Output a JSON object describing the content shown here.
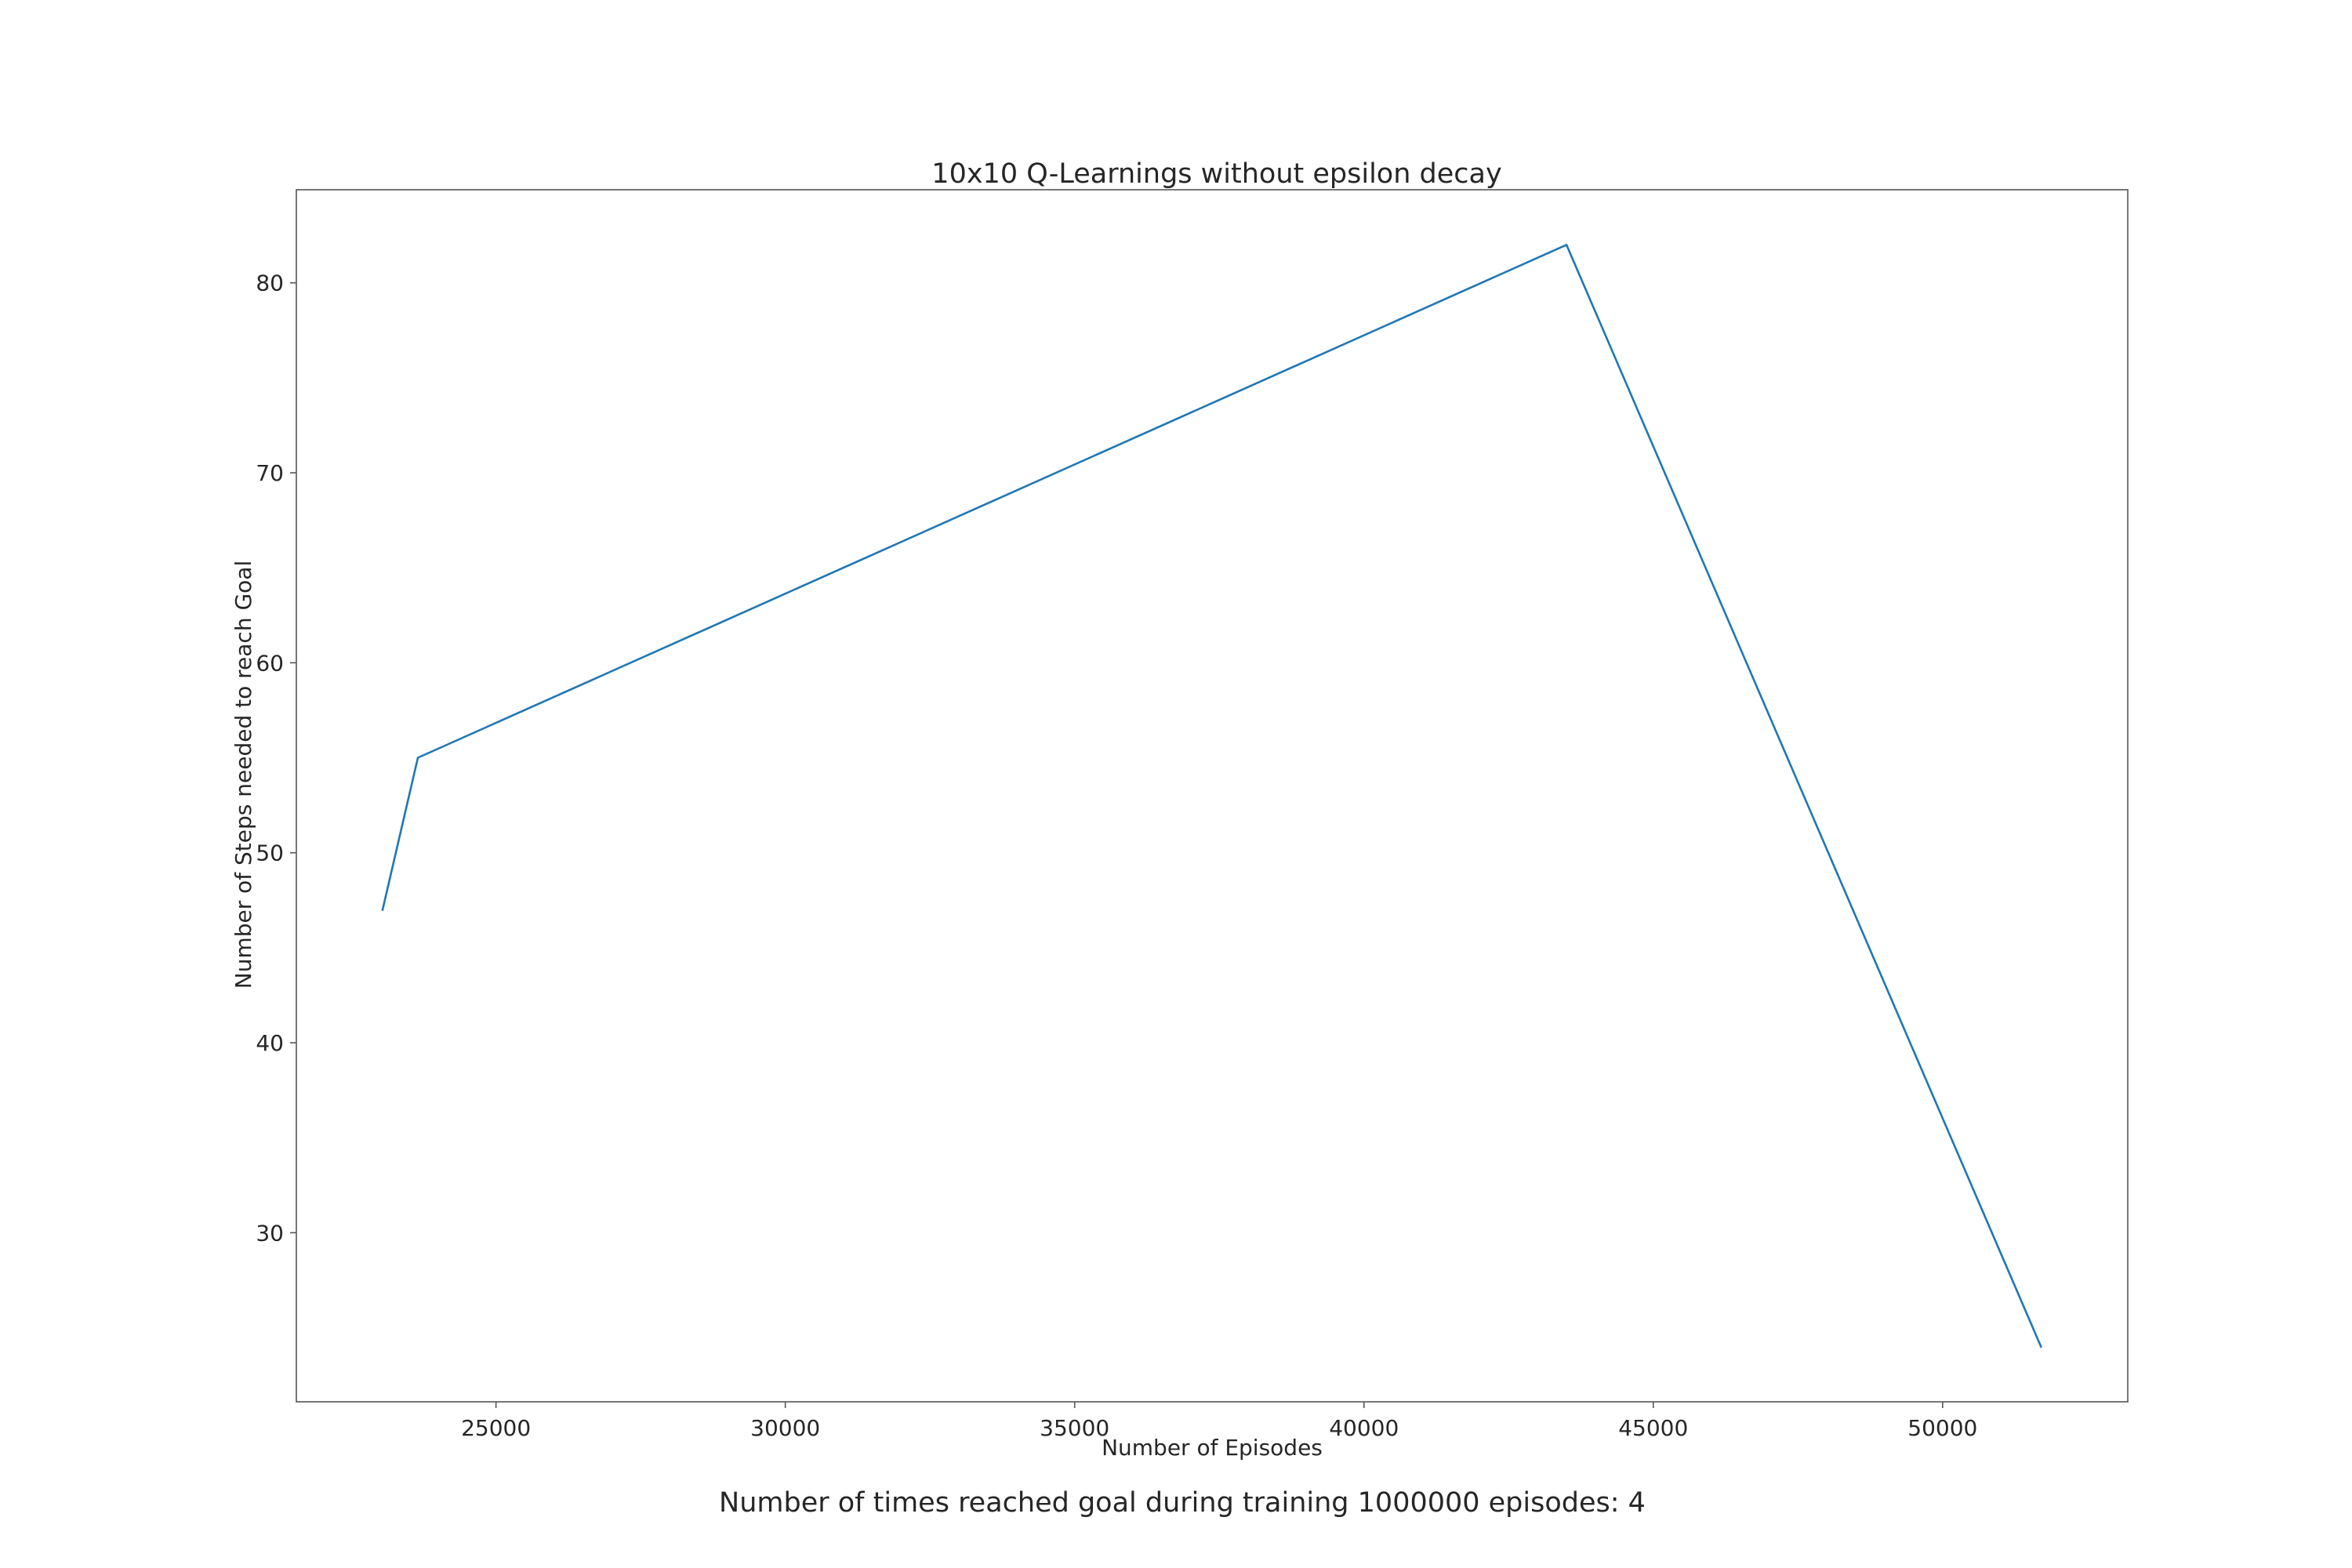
{
  "chart_data": {
    "type": "line",
    "title": "10x10 Q-Learnings without epsilon decay",
    "xlabel": "Number of Episodes",
    "ylabel": "Number of Steps needed to reach Goal",
    "caption": "Number of times reached goal during training 1000000 episodes: 4",
    "xlim": [
      21550,
      53200
    ],
    "ylim": [
      21.1,
      84.9
    ],
    "x_ticks": [
      25000,
      30000,
      35000,
      40000,
      45000,
      50000
    ],
    "y_ticks": [
      30,
      40,
      50,
      60,
      70,
      80
    ],
    "grid": false,
    "series": [
      {
        "x": [
          23040,
          23650,
          43500,
          51700
        ],
        "y": [
          47,
          55,
          82,
          24
        ],
        "color": "#1f77b4"
      }
    ]
  }
}
